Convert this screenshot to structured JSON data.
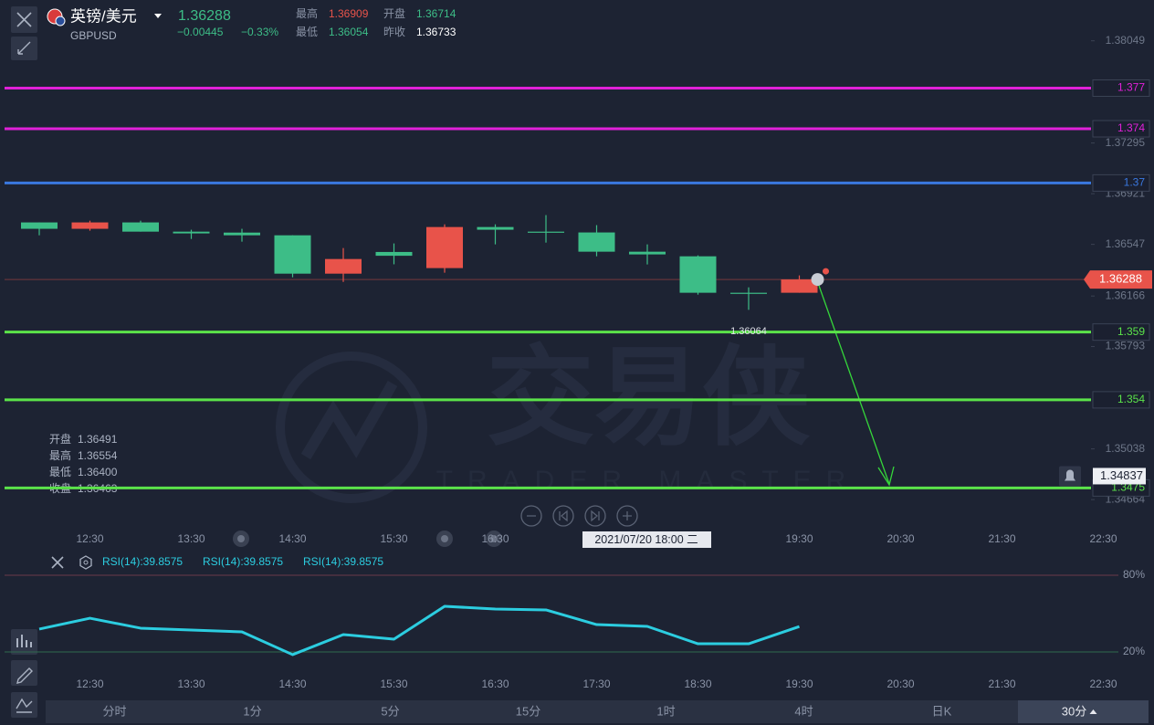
{
  "header": {
    "title": "英镑/美元",
    "symbol": "GBPUSD",
    "price_change": "−0.00445",
    "percent_change": "−0.33%",
    "stats": [
      {
        "label": "最高",
        "value": "1.36909"
      },
      {
        "label": "开盘",
        "value": "1.36714"
      },
      {
        "label": "最低",
        "value": "1.36054"
      },
      {
        "label": "昨收",
        "value": "1.36733"
      }
    ]
  },
  "hover": [
    {
      "label": "开盘",
      "value": "1.36491"
    },
    {
      "label": "最高",
      "value": "1.36554"
    },
    {
      "label": "最低",
      "value": "1.36400"
    },
    {
      "label": "收盘",
      "value": "1.36463"
    }
  ],
  "watermark": {
    "text": "交易侠",
    "subtitle": "TRADER MASTER"
  },
  "tabs": [
    "分时",
    "1分",
    "5分",
    "15分",
    "1时",
    "4时",
    "日K",
    "30分"
  ],
  "chart_data": [
    {
      "type": "candlestick",
      "categories": [
        null,
        "12:30",
        null,
        "13:30",
        null,
        "14:30",
        null,
        "15:30",
        null,
        "16:30",
        null,
        "17:30",
        null,
        "18:30",
        null,
        "19:30",
        null,
        "20:30",
        null,
        "21:30",
        null,
        "22:30"
      ],
      "open": [
        1.36709,
        1.36662,
        1.36709,
        1.36641,
        1.36634,
        1.36614,
        1.36331,
        1.36491,
        1.36372,
        1.36675,
        1.36641,
        1.36635,
        1.36493,
        1.36459,
        1.3619,
        1.3619,
        null,
        null,
        null,
        null,
        null,
        null
      ],
      "high": [
        1.36709,
        1.36722,
        1.36722,
        1.36655,
        1.36662,
        1.36614,
        1.3652,
        1.36554,
        1.36695,
        1.36695,
        1.36763,
        1.36689,
        1.36547,
        1.36466,
        1.3623,
        1.36318,
        null,
        null,
        null,
        null,
        null,
        null
      ],
      "low": [
        1.36614,
        1.36648,
        1.36641,
        1.36587,
        1.36567,
        1.36304,
        1.3627,
        1.364,
        1.36338,
        1.36547,
        1.3656,
        1.36459,
        1.36399,
        1.36176,
        1.36064,
        1.3619,
        null,
        null,
        null,
        null,
        null,
        null
      ],
      "close": [
        1.36662,
        1.36709,
        1.36641,
        1.36628,
        1.36614,
        1.36331,
        1.36439,
        1.36463,
        1.36675,
        1.36655,
        1.36635,
        1.36493,
        1.36473,
        1.3619,
        1.36183,
        1.36288,
        null,
        null,
        null,
        null,
        null,
        null
      ],
      "up_color": "#e8534a",
      "down_color": "#3dbd87",
      "ylim": [
        1.3451,
        1.3835
      ],
      "yticks": [
        1.38049,
        1.37295,
        1.36921,
        1.36547,
        1.36166,
        1.35793,
        1.35038,
        1.34664
      ],
      "levels": [
        {
          "value": 1.377,
          "color": "#e020d8"
        },
        {
          "value": 1.374,
          "color": "#e020d8"
        },
        {
          "value": 1.37,
          "color": "#3a78e0"
        },
        {
          "value": 1.359,
          "color": "#5be34a"
        },
        {
          "value": 1.354,
          "color": "#5be34a"
        },
        {
          "value": 1.3475,
          "color": "#5be34a"
        }
      ],
      "alert": 1.34837,
      "crosshair_label": "2021/07/20 18:00 二"
    },
    {
      "type": "line",
      "categories": [
        null,
        "12:30",
        null,
        "13:30",
        null,
        "14:30",
        null,
        "15:30",
        null,
        "16:30",
        null,
        "17:30",
        null,
        "18:30",
        null,
        "19:30",
        null,
        "20:30",
        null,
        "21:30",
        null,
        "22:30"
      ],
      "values": [
        37.9,
        46.4,
        38.6,
        37.1,
        35.7,
        17.9,
        33.6,
        30.0,
        55.7,
        53.6,
        52.9,
        41.4,
        40.0,
        26.4,
        26.4,
        39.8575,
        null,
        null,
        null,
        null,
        null,
        null
      ],
      "color": "#2ccde0",
      "legend": [
        "RSI(14):39.8575",
        "RSI(14):39.8575",
        "RSI(14):39.8575"
      ],
      "ylim": [
        5,
        86
      ],
      "yticks": [
        {
          "value": 80,
          "label": "80%"
        },
        {
          "value": 20,
          "label": "20%"
        }
      ]
    }
  ]
}
